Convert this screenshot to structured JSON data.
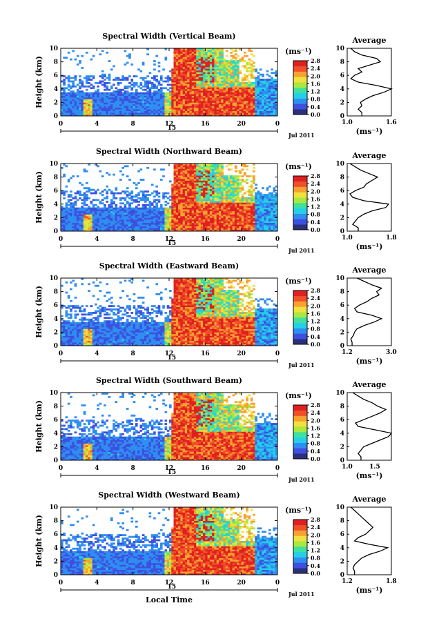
{
  "chart_data": [
    {
      "type": "heatmap",
      "title": "Spectral Width (Vertical Beam)",
      "ylabel": "Height (km)",
      "ylim": [
        0,
        10
      ],
      "y_ticks": [
        "0",
        "2",
        "4",
        "6",
        "8",
        "10"
      ],
      "xlim": [
        0,
        24
      ],
      "x_ticks": [
        "0",
        "4",
        "8",
        "12",
        "16",
        "20",
        "0"
      ],
      "date_label": "15",
      "date_suffix": "Jul 2011",
      "colorbar": {
        "unit": "(ms⁻¹)",
        "min": 0.0,
        "max": 2.8,
        "ticks": [
          "2.8",
          "2.4",
          "2.0",
          "1.6",
          "1.2",
          "0.8",
          "0.4",
          "0.0"
        ]
      },
      "profile": {
        "title": "Average",
        "xlim": [
          1.0,
          1.6
        ],
        "x_ticks": [
          "1.0",
          "1.6"
        ],
        "xlabel": "(ms⁻¹)",
        "ylim": [
          0,
          10
        ],
        "y_ticks": [
          "0",
          "2",
          "4",
          "6",
          "8",
          "10"
        ],
        "heights": [
          0.5,
          1,
          1.5,
          2,
          2.5,
          3,
          3.5,
          4,
          4.5,
          5,
          5.5,
          6,
          6.5,
          7,
          7.5,
          8,
          8.5,
          9,
          9.5,
          10
        ],
        "values": [
          1.2,
          1.15,
          1.2,
          1.18,
          1.25,
          1.35,
          1.5,
          1.6,
          1.4,
          1.15,
          1.05,
          1.1,
          1.2,
          1.15,
          1.3,
          1.45,
          1.4,
          1.2,
          1.1,
          1.05
        ]
      }
    },
    {
      "type": "heatmap",
      "title": "Spectral Width (Northward Beam)",
      "ylabel": "Height (km)",
      "ylim": [
        0,
        10
      ],
      "y_ticks": [
        "0",
        "2",
        "4",
        "6",
        "8",
        "10"
      ],
      "xlim": [
        0,
        24
      ],
      "x_ticks": [
        "0",
        "4",
        "8",
        "12",
        "16",
        "20",
        "0"
      ],
      "date_label": "15",
      "date_suffix": "Jul 2011",
      "colorbar": {
        "unit": "(ms⁻¹)",
        "min": 0.0,
        "max": 2.8,
        "ticks": [
          "2.8",
          "2.4",
          "2.0",
          "1.6",
          "1.2",
          "0.8",
          "0.4",
          "0.0"
        ]
      },
      "profile": {
        "title": "Average",
        "xlim": [
          1.0,
          1.8
        ],
        "x_ticks": [
          "1.0",
          "1.8"
        ],
        "xlabel": "(ms⁻¹)",
        "ylim": [
          0,
          10
        ],
        "y_ticks": [
          "0",
          "2",
          "4",
          "6",
          "8",
          "10"
        ],
        "heights": [
          0.5,
          1,
          1.5,
          2,
          2.5,
          3,
          3.5,
          4,
          4.5,
          5,
          5.5,
          6,
          6.5,
          7,
          7.5,
          8,
          8.5,
          9,
          9.5,
          10
        ],
        "values": [
          1.2,
          1.1,
          1.15,
          1.2,
          1.3,
          1.45,
          1.7,
          1.75,
          1.3,
          1.1,
          1.05,
          1.15,
          1.3,
          1.35,
          1.45,
          1.55,
          1.4,
          1.25,
          1.15,
          1.05
        ]
      }
    },
    {
      "type": "heatmap",
      "title": "Spectral Width (Eastward Beam)",
      "ylabel": "Height (km)",
      "ylim": [
        0,
        10
      ],
      "y_ticks": [
        "0",
        "2",
        "4",
        "6",
        "8",
        "10"
      ],
      "xlim": [
        0,
        24
      ],
      "x_ticks": [
        "0",
        "4",
        "8",
        "12",
        "16",
        "20",
        "0"
      ],
      "date_label": "15",
      "date_suffix": "Jul 2011",
      "colorbar": {
        "unit": "(ms⁻¹)",
        "min": 0.0,
        "max": 2.8,
        "ticks": [
          "2.8",
          "2.4",
          "2.0",
          "1.6",
          "1.2",
          "0.8",
          "0.4",
          "0.0"
        ]
      },
      "profile": {
        "title": "Average",
        "xlim": [
          1.2,
          3.0
        ],
        "x_ticks": [
          "1.2",
          "3.0"
        ],
        "xlabel": "(ms⁻¹)",
        "ylim": [
          0,
          10
        ],
        "y_ticks": [
          "0",
          "2",
          "4",
          "6",
          "8",
          "10"
        ],
        "heights": [
          0.5,
          1,
          1.5,
          2,
          2.5,
          3,
          3.5,
          4,
          4.5,
          5,
          5.5,
          6,
          6.5,
          7,
          7.5,
          8,
          8.5,
          9,
          9.5,
          10
        ],
        "values": [
          1.4,
          1.35,
          1.45,
          1.5,
          1.6,
          1.9,
          2.3,
          2.6,
          2.2,
          1.6,
          1.5,
          1.7,
          2.0,
          2.2,
          2.5,
          2.4,
          2.6,
          2.2,
          1.9,
          1.6
        ]
      }
    },
    {
      "type": "heatmap",
      "title": "Spectral Width (Southward Beam)",
      "ylabel": "Height (km)",
      "ylim": [
        0,
        10
      ],
      "y_ticks": [
        "0",
        "2",
        "4",
        "6",
        "8",
        "10"
      ],
      "xlim": [
        0,
        24
      ],
      "x_ticks": [
        "0",
        "4",
        "8",
        "12",
        "16",
        "20",
        "0"
      ],
      "date_label": "15",
      "date_suffix": "Jul 2011",
      "colorbar": {
        "unit": "(ms⁻¹)",
        "min": 0.0,
        "max": 2.8,
        "ticks": [
          "2.8",
          "2.4",
          "2.0",
          "1.6",
          "1.2",
          "0.8",
          "0.4",
          "0.0"
        ]
      },
      "profile": {
        "title": "Average",
        "xlim": [
          1.0,
          1.8
        ],
        "x_ticks": [
          "1.0",
          "1.5"
        ],
        "xlabel": "(ms⁻¹)",
        "ylim": [
          0,
          10
        ],
        "y_ticks": [
          "0",
          "2",
          "4",
          "6",
          "8",
          "10"
        ],
        "heights": [
          0.5,
          1,
          1.5,
          2,
          2.5,
          3,
          3.5,
          4,
          4.5,
          5,
          5.5,
          6,
          6.5,
          7,
          7.5,
          8,
          8.5,
          9,
          9.5,
          10
        ],
        "values": [
          1.25,
          1.2,
          1.25,
          1.3,
          1.45,
          1.6,
          1.75,
          1.8,
          1.5,
          1.2,
          1.15,
          1.3,
          1.45,
          1.6,
          1.7,
          1.55,
          1.45,
          1.3,
          1.2,
          1.1
        ]
      }
    },
    {
      "type": "heatmap",
      "title": "Spectral Width (Westward Beam)",
      "ylabel": "Height (km)",
      "ylim": [
        0,
        10
      ],
      "y_ticks": [
        "0",
        "2",
        "4",
        "6",
        "8",
        "10"
      ],
      "xlim": [
        0,
        24
      ],
      "x_ticks": [
        "0",
        "4",
        "8",
        "12",
        "16",
        "20",
        "0"
      ],
      "date_label": "15",
      "date_suffix": "Jul 2011",
      "xlabel": "Local Time",
      "colorbar": {
        "unit": "(ms⁻¹)",
        "min": 0.0,
        "max": 2.8,
        "ticks": [
          "2.8",
          "2.4",
          "2.0",
          "1.6",
          "1.2",
          "0.8",
          "0.4",
          "0.0"
        ]
      },
      "profile": {
        "title": "Average",
        "xlim": [
          1.2,
          1.8
        ],
        "x_ticks": [
          "1.2",
          "1.8"
        ],
        "xlabel": "(ms⁻¹)",
        "ylim": [
          0,
          10
        ],
        "y_ticks": [
          "0",
          "2",
          "4",
          "6",
          "8",
          "10"
        ],
        "heights": [
          0.5,
          1,
          1.5,
          2,
          2.5,
          3,
          3.5,
          4,
          4.5,
          5,
          5.5,
          6,
          6.5,
          7,
          7.5,
          8,
          8.5,
          9,
          9.5,
          10
        ],
        "values": [
          1.3,
          1.28,
          1.3,
          1.35,
          1.4,
          1.5,
          1.65,
          1.75,
          1.5,
          1.3,
          1.35,
          1.45,
          1.5,
          1.55,
          1.5,
          1.45,
          1.4,
          1.35,
          1.3,
          1.25
        ]
      }
    }
  ],
  "colors": {
    "colormap": [
      "#2c2f7a",
      "#3d50e0",
      "#2f8ef0",
      "#23d0e8",
      "#40e0a0",
      "#a8e840",
      "#f0e040",
      "#f8a030",
      "#f05028",
      "#e02020"
    ]
  }
}
